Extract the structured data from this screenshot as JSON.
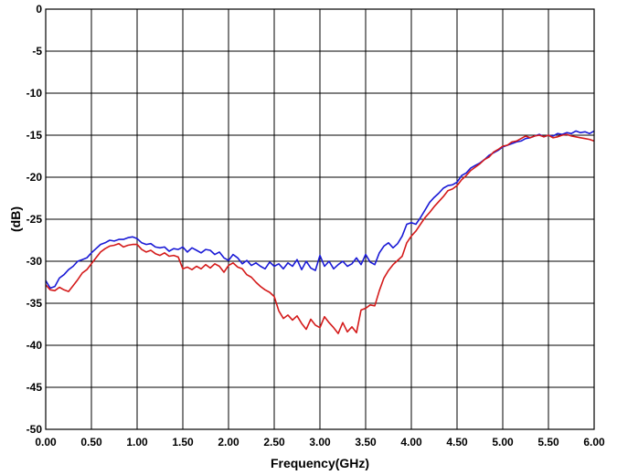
{
  "chart_data": {
    "type": "line",
    "xlabel": "Frequency(GHz)",
    "ylabel": "(dB)",
    "xlim": [
      0,
      6
    ],
    "ylim": [
      -50,
      0
    ],
    "xticks": [
      "0.00",
      "0.50",
      "1.00",
      "1.50",
      "2.00",
      "2.50",
      "3.00",
      "3.50",
      "4.00",
      "4.50",
      "5.00",
      "5.50",
      "6.00"
    ],
    "yticks": [
      "0",
      "-5",
      "-10",
      "-15",
      "-20",
      "-25",
      "-30",
      "-35",
      "-40",
      "-45",
      "-50"
    ],
    "grid": true,
    "series": [
      {
        "color": "#1a1ad6",
        "points": [
          [
            0.0,
            -32.3
          ],
          [
            0.05,
            -33.2
          ],
          [
            0.1,
            -33.0
          ],
          [
            0.15,
            -32.0
          ],
          [
            0.2,
            -31.6
          ],
          [
            0.25,
            -31.0
          ],
          [
            0.3,
            -30.6
          ],
          [
            0.35,
            -30.0
          ],
          [
            0.4,
            -29.8
          ],
          [
            0.45,
            -29.6
          ],
          [
            0.5,
            -29.0
          ],
          [
            0.55,
            -28.5
          ],
          [
            0.6,
            -28.0
          ],
          [
            0.65,
            -27.8
          ],
          [
            0.7,
            -27.5
          ],
          [
            0.75,
            -27.6
          ],
          [
            0.8,
            -27.4
          ],
          [
            0.85,
            -27.4
          ],
          [
            0.9,
            -27.2
          ],
          [
            0.95,
            -27.1
          ],
          [
            1.0,
            -27.3
          ],
          [
            1.05,
            -27.8
          ],
          [
            1.1,
            -28.0
          ],
          [
            1.15,
            -27.9
          ],
          [
            1.2,
            -28.3
          ],
          [
            1.25,
            -28.4
          ],
          [
            1.3,
            -28.3
          ],
          [
            1.35,
            -28.8
          ],
          [
            1.4,
            -28.5
          ],
          [
            1.45,
            -28.6
          ],
          [
            1.5,
            -28.3
          ],
          [
            1.55,
            -28.9
          ],
          [
            1.6,
            -28.4
          ],
          [
            1.65,
            -28.7
          ],
          [
            1.7,
            -29.0
          ],
          [
            1.75,
            -28.6
          ],
          [
            1.8,
            -28.7
          ],
          [
            1.85,
            -29.2
          ],
          [
            1.9,
            -28.9
          ],
          [
            1.95,
            -29.6
          ],
          [
            2.0,
            -29.9
          ],
          [
            2.05,
            -29.2
          ],
          [
            2.1,
            -29.6
          ],
          [
            2.15,
            -30.3
          ],
          [
            2.2,
            -29.9
          ],
          [
            2.25,
            -30.5
          ],
          [
            2.3,
            -30.2
          ],
          [
            2.35,
            -30.6
          ],
          [
            2.4,
            -30.9
          ],
          [
            2.45,
            -30.1
          ],
          [
            2.5,
            -30.6
          ],
          [
            2.55,
            -30.3
          ],
          [
            2.6,
            -30.9
          ],
          [
            2.65,
            -30.2
          ],
          [
            2.7,
            -30.6
          ],
          [
            2.75,
            -29.8
          ],
          [
            2.8,
            -31.0
          ],
          [
            2.85,
            -30.0
          ],
          [
            2.9,
            -30.8
          ],
          [
            2.95,
            -31.1
          ],
          [
            3.0,
            -29.3
          ],
          [
            3.05,
            -30.6
          ],
          [
            3.1,
            -30.0
          ],
          [
            3.15,
            -30.9
          ],
          [
            3.2,
            -30.4
          ],
          [
            3.25,
            -30.0
          ],
          [
            3.3,
            -30.6
          ],
          [
            3.35,
            -30.3
          ],
          [
            3.4,
            -29.6
          ],
          [
            3.45,
            -30.4
          ],
          [
            3.5,
            -29.2
          ],
          [
            3.55,
            -30.1
          ],
          [
            3.6,
            -30.4
          ],
          [
            3.65,
            -29.0
          ],
          [
            3.7,
            -28.2
          ],
          [
            3.75,
            -27.8
          ],
          [
            3.8,
            -28.4
          ],
          [
            3.85,
            -27.9
          ],
          [
            3.9,
            -27.0
          ],
          [
            3.95,
            -25.6
          ],
          [
            4.0,
            -25.4
          ],
          [
            4.05,
            -25.6
          ],
          [
            4.1,
            -24.8
          ],
          [
            4.15,
            -23.9
          ],
          [
            4.2,
            -23.0
          ],
          [
            4.25,
            -22.4
          ],
          [
            4.3,
            -21.9
          ],
          [
            4.35,
            -21.3
          ],
          [
            4.4,
            -21.0
          ],
          [
            4.45,
            -20.9
          ],
          [
            4.5,
            -20.6
          ],
          [
            4.55,
            -19.8
          ],
          [
            4.6,
            -19.5
          ],
          [
            4.65,
            -18.9
          ],
          [
            4.7,
            -18.6
          ],
          [
            4.75,
            -18.3
          ],
          [
            4.8,
            -17.9
          ],
          [
            4.85,
            -17.4
          ],
          [
            4.9,
            -17.1
          ],
          [
            4.95,
            -16.8
          ],
          [
            5.0,
            -16.4
          ],
          [
            5.05,
            -16.2
          ],
          [
            5.1,
            -16.0
          ],
          [
            5.15,
            -15.8
          ],
          [
            5.2,
            -15.7
          ],
          [
            5.25,
            -15.4
          ],
          [
            5.3,
            -15.3
          ],
          [
            5.35,
            -15.1
          ],
          [
            5.4,
            -14.9
          ],
          [
            5.45,
            -15.2
          ],
          [
            5.5,
            -15.0
          ],
          [
            5.55,
            -15.1
          ],
          [
            5.6,
            -14.8
          ],
          [
            5.65,
            -14.9
          ],
          [
            5.7,
            -14.7
          ],
          [
            5.75,
            -14.8
          ],
          [
            5.8,
            -14.5
          ],
          [
            5.85,
            -14.7
          ],
          [
            5.9,
            -14.6
          ],
          [
            5.95,
            -14.8
          ],
          [
            6.0,
            -14.5
          ]
        ]
      },
      {
        "color": "#d41a1a",
        "points": [
          [
            0.0,
            -32.8
          ],
          [
            0.05,
            -33.4
          ],
          [
            0.1,
            -33.5
          ],
          [
            0.15,
            -33.1
          ],
          [
            0.2,
            -33.4
          ],
          [
            0.25,
            -33.6
          ],
          [
            0.3,
            -32.9
          ],
          [
            0.35,
            -32.2
          ],
          [
            0.4,
            -31.4
          ],
          [
            0.45,
            -31.0
          ],
          [
            0.5,
            -30.3
          ],
          [
            0.55,
            -29.6
          ],
          [
            0.6,
            -28.9
          ],
          [
            0.65,
            -28.5
          ],
          [
            0.7,
            -28.2
          ],
          [
            0.75,
            -28.1
          ],
          [
            0.8,
            -27.9
          ],
          [
            0.85,
            -28.3
          ],
          [
            0.9,
            -28.1
          ],
          [
            0.95,
            -28.0
          ],
          [
            1.0,
            -28.0
          ],
          [
            1.05,
            -28.6
          ],
          [
            1.1,
            -28.9
          ],
          [
            1.15,
            -28.7
          ],
          [
            1.2,
            -29.1
          ],
          [
            1.25,
            -29.3
          ],
          [
            1.3,
            -29.0
          ],
          [
            1.35,
            -29.4
          ],
          [
            1.4,
            -29.3
          ],
          [
            1.45,
            -29.5
          ],
          [
            1.5,
            -30.9
          ],
          [
            1.55,
            -30.7
          ],
          [
            1.6,
            -31.0
          ],
          [
            1.65,
            -30.6
          ],
          [
            1.7,
            -30.9
          ],
          [
            1.75,
            -30.4
          ],
          [
            1.8,
            -30.8
          ],
          [
            1.85,
            -30.3
          ],
          [
            1.9,
            -30.6
          ],
          [
            1.95,
            -31.3
          ],
          [
            2.0,
            -30.5
          ],
          [
            2.05,
            -30.2
          ],
          [
            2.1,
            -30.7
          ],
          [
            2.15,
            -30.9
          ],
          [
            2.2,
            -31.6
          ],
          [
            2.25,
            -31.9
          ],
          [
            2.3,
            -32.5
          ],
          [
            2.35,
            -33.0
          ],
          [
            2.4,
            -33.4
          ],
          [
            2.45,
            -33.7
          ],
          [
            2.5,
            -34.2
          ],
          [
            2.55,
            -35.9
          ],
          [
            2.6,
            -36.8
          ],
          [
            2.65,
            -36.4
          ],
          [
            2.7,
            -37.0
          ],
          [
            2.75,
            -36.5
          ],
          [
            2.8,
            -37.4
          ],
          [
            2.85,
            -38.1
          ],
          [
            2.9,
            -36.9
          ],
          [
            2.95,
            -37.6
          ],
          [
            3.0,
            -37.9
          ],
          [
            3.05,
            -36.6
          ],
          [
            3.1,
            -37.3
          ],
          [
            3.15,
            -37.9
          ],
          [
            3.2,
            -38.6
          ],
          [
            3.25,
            -37.3
          ],
          [
            3.3,
            -38.4
          ],
          [
            3.35,
            -37.8
          ],
          [
            3.4,
            -38.5
          ],
          [
            3.45,
            -35.8
          ],
          [
            3.5,
            -35.6
          ],
          [
            3.55,
            -35.2
          ],
          [
            3.6,
            -35.3
          ],
          [
            3.65,
            -33.5
          ],
          [
            3.7,
            -32.0
          ],
          [
            3.75,
            -31.1
          ],
          [
            3.8,
            -30.4
          ],
          [
            3.85,
            -29.9
          ],
          [
            3.9,
            -29.4
          ],
          [
            3.95,
            -27.8
          ],
          [
            4.0,
            -27.0
          ],
          [
            4.05,
            -26.4
          ],
          [
            4.1,
            -25.6
          ],
          [
            4.15,
            -24.8
          ],
          [
            4.2,
            -24.2
          ],
          [
            4.25,
            -23.5
          ],
          [
            4.3,
            -22.9
          ],
          [
            4.35,
            -22.3
          ],
          [
            4.4,
            -21.6
          ],
          [
            4.45,
            -21.4
          ],
          [
            4.5,
            -21.0
          ],
          [
            4.55,
            -20.3
          ],
          [
            4.6,
            -19.8
          ],
          [
            4.65,
            -19.2
          ],
          [
            4.7,
            -18.8
          ],
          [
            4.75,
            -18.4
          ],
          [
            4.8,
            -17.9
          ],
          [
            4.85,
            -17.6
          ],
          [
            4.9,
            -17.0
          ],
          [
            4.95,
            -16.7
          ],
          [
            5.0,
            -16.3
          ],
          [
            5.05,
            -16.2
          ],
          [
            5.1,
            -15.8
          ],
          [
            5.15,
            -15.7
          ],
          [
            5.2,
            -15.4
          ],
          [
            5.25,
            -15.1
          ],
          [
            5.3,
            -15.3
          ],
          [
            5.35,
            -15.1
          ],
          [
            5.4,
            -15.0
          ],
          [
            5.45,
            -15.2
          ],
          [
            5.5,
            -15.0
          ],
          [
            5.55,
            -15.3
          ],
          [
            5.6,
            -15.2
          ],
          [
            5.65,
            -15.0
          ],
          [
            5.7,
            -14.9
          ],
          [
            5.75,
            -15.1
          ],
          [
            5.8,
            -15.2
          ],
          [
            5.85,
            -15.3
          ],
          [
            5.9,
            -15.4
          ],
          [
            5.95,
            -15.5
          ],
          [
            6.0,
            -15.7
          ]
        ]
      }
    ]
  }
}
